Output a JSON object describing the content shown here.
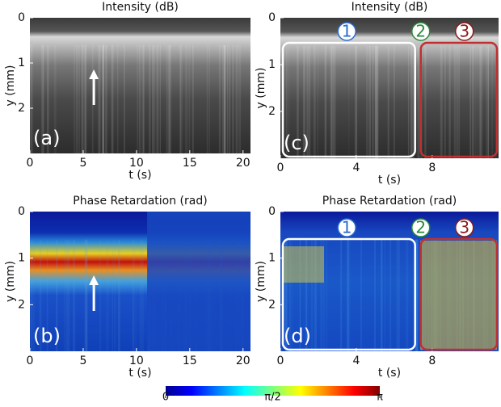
{
  "chart_data": [
    {
      "type": "image",
      "title": "Intensity (dB)",
      "panel_label": "(a)",
      "xlabel": "t (s)",
      "ylabel": "y (mm)",
      "xlim": [
        0,
        20.7
      ],
      "ylim": [
        0,
        3
      ],
      "xticks": [
        0,
        5,
        10,
        15,
        20
      ],
      "yticks": [
        0,
        1,
        2
      ]
    },
    {
      "type": "image",
      "title": "Intensity (dB)",
      "panel_label": "(c)",
      "xlabel": "t (s)",
      "ylabel": "y (mm)",
      "xlim": [
        0,
        11.5
      ],
      "ylim": [
        0,
        3
      ],
      "xticks": [
        0,
        4,
        8
      ],
      "yticks": [
        0,
        1,
        2
      ],
      "annotations": [
        "1",
        "2",
        "3"
      ]
    },
    {
      "type": "image",
      "title": "Phase Retardation (rad)",
      "panel_label": "(b)",
      "xlabel": "t (s)",
      "ylabel": "y (mm)",
      "xlim": [
        0,
        20.7
      ],
      "ylim": [
        0,
        3
      ],
      "xticks": [
        0,
        5,
        10,
        15,
        20
      ],
      "yticks": [
        0,
        1,
        2
      ]
    },
    {
      "type": "image",
      "title": "Phase Retardation (rad)",
      "panel_label": "(d)",
      "xlabel": "t (s)",
      "ylabel": "y (mm)",
      "xlim": [
        0,
        11.5
      ],
      "ylim": [
        0,
        3
      ],
      "xticks": [
        0,
        4,
        8
      ],
      "yticks": [
        0,
        1,
        2
      ],
      "annotations": [
        "1",
        "2",
        "3"
      ]
    }
  ],
  "colorbar": {
    "lim": [
      0,
      3.1416
    ],
    "ticks": [
      {
        "value": 0,
        "label": "0"
      },
      {
        "value": 1.5708,
        "label": "π/2"
      },
      {
        "value": 3.1416,
        "label": "π"
      }
    ]
  }
}
